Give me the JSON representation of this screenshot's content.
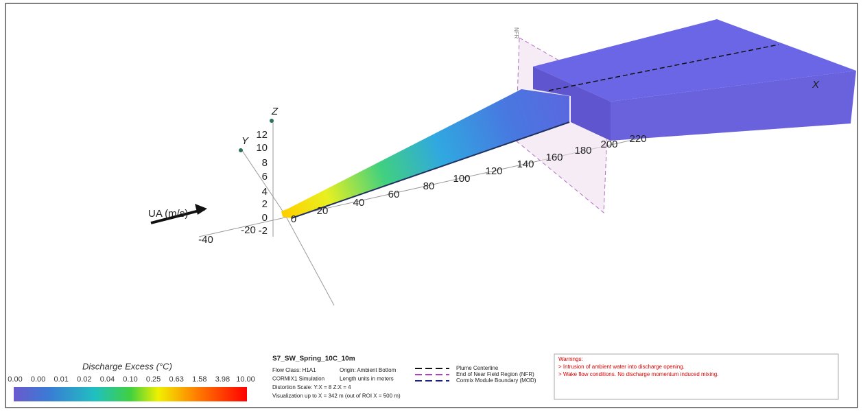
{
  "axes": {
    "x_label": "X",
    "y_label": "Y",
    "z_label": "Z",
    "nfr_label": "NFR",
    "current_label": "UA (m/s)",
    "x_ticks": [
      "-40",
      "-20",
      "0",
      "20",
      "40",
      "60",
      "80",
      "100",
      "120",
      "140",
      "160",
      "180",
      "200",
      "220"
    ],
    "z_ticks": [
      "12",
      "10",
      "8",
      "6",
      "4",
      "2",
      "0",
      "-2"
    ]
  },
  "colorbar": {
    "title": "Discharge Excess  (°C)",
    "labels": [
      "0.00",
      "0.00",
      "0.01",
      "0.02",
      "0.04",
      "0.10",
      "0.25",
      "0.63",
      "1.58",
      "3.98",
      "10.00"
    ]
  },
  "info": {
    "title": "S7_SW_Spring_10C_10m",
    "lines": [
      [
        "Flow Class: H1A1",
        "Origin: Ambient Bottom"
      ],
      [
        "CORMIX1 Simulation",
        "Length units in meters"
      ],
      [
        "Distortion Scale:  Y:X = 8    Z:X = 4",
        ""
      ],
      [
        "Visualization up to X = 342 m (out of ROI X = 500 m)",
        ""
      ]
    ]
  },
  "legend": [
    "Plume Centerline",
    "End of Near Field Region (NFR)",
    "Cormix Module Boundary (MOD)"
  ],
  "warnings": {
    "title": "Warnings:",
    "items": [
      "> Intrusion of ambient water into discharge opening.",
      "> Wake flow conditions. No discharge momentum induced mixing."
    ]
  }
}
